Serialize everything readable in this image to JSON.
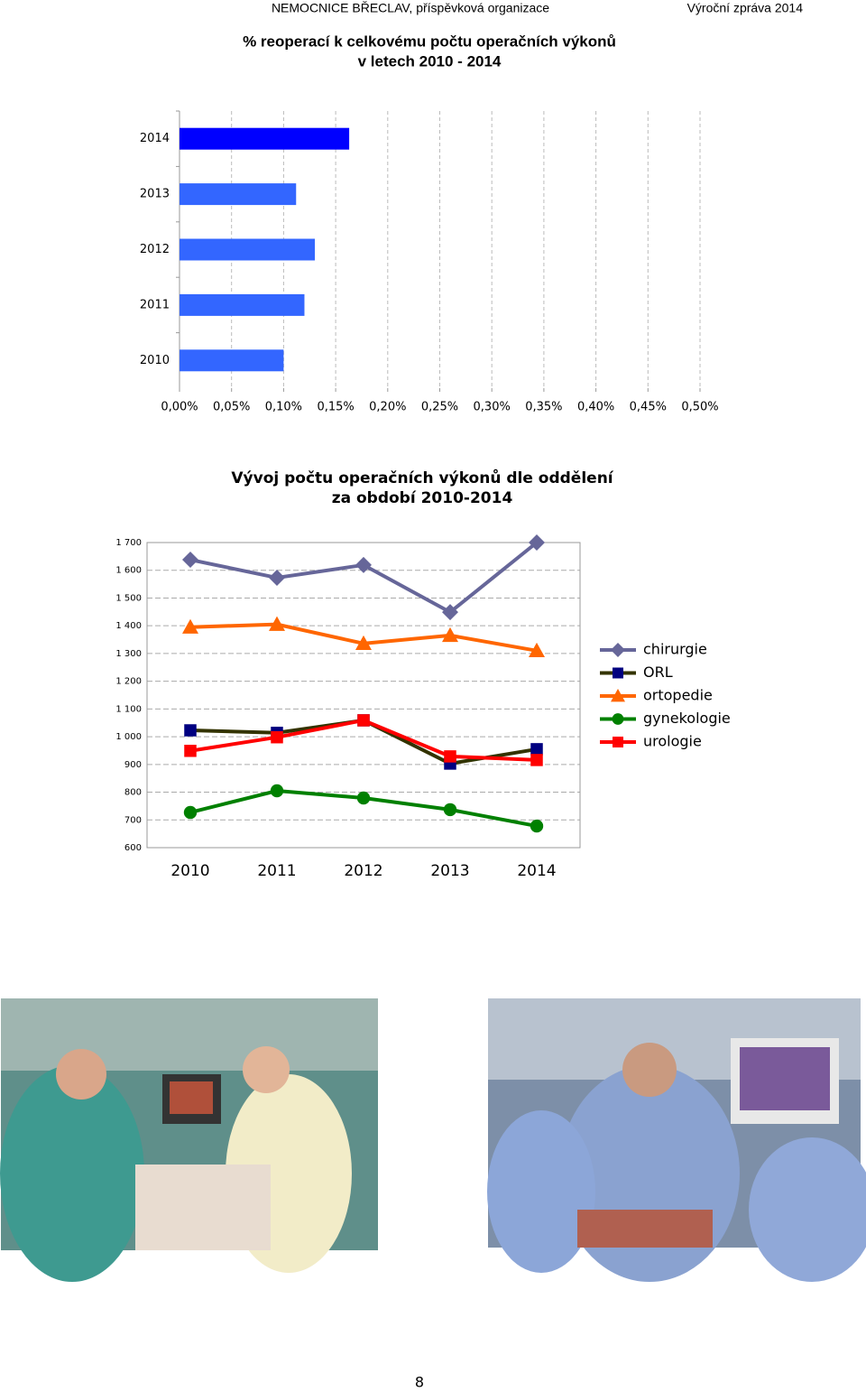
{
  "header": {
    "left": "NEMOCNICE BŘECLAV, příspěvková organizace",
    "right": "Výroční zpráva 2014"
  },
  "chart_data": [
    {
      "type": "bar",
      "orientation": "horizontal",
      "title": [
        "% reoperací k celkovému počtu operačních výkonů",
        "v letech 2010 - 2014"
      ],
      "categories": [
        "2014",
        "2013",
        "2012",
        "2011",
        "2010"
      ],
      "values": [
        0.163,
        0.112,
        0.13,
        0.12,
        0.1
      ],
      "colors": [
        "#0000ff",
        "#3366ff",
        "#3366ff",
        "#3366ff",
        "#3366ff"
      ],
      "xlim": [
        0,
        0.5
      ],
      "xticks": [
        {
          "value": 0,
          "label": "0,00%"
        },
        {
          "value": 0.05,
          "label": "0,05%"
        },
        {
          "value": 0.1,
          "label": "0,10%"
        },
        {
          "value": 0.15,
          "label": "0,15%"
        },
        {
          "value": 0.2,
          "label": "0,20%"
        },
        {
          "value": 0.25,
          "label": "0,25%"
        },
        {
          "value": 0.3,
          "label": "0,30%"
        },
        {
          "value": 0.35,
          "label": "0,35%"
        },
        {
          "value": 0.4,
          "label": "0,40%"
        },
        {
          "value": 0.45,
          "label": "0,45%"
        },
        {
          "value": 0.5,
          "label": "0,50%"
        }
      ],
      "grid": true
    },
    {
      "type": "line",
      "title": [
        "Vývoj počtu operačních výkonů dle oddělení",
        "za období 2010-2014"
      ],
      "categories": [
        "2010",
        "2011",
        "2012",
        "2013",
        "2014"
      ],
      "series": [
        {
          "name": "chirurgie",
          "color": "#666699",
          "marker": "diamond",
          "marker_color": "#666699",
          "values": [
            1638,
            1573,
            1619,
            1449,
            1700
          ]
        },
        {
          "name": "ORL",
          "color": "#333300",
          "marker": "square",
          "marker_color": "#000080",
          "values": [
            1023,
            1014,
            1059,
            903,
            955
          ]
        },
        {
          "name": "ortopedie",
          "color": "#ff6600",
          "marker": "triangle",
          "marker_color": "#ff6600",
          "values": [
            1395,
            1405,
            1336,
            1365,
            1310
          ]
        },
        {
          "name": "gynekologie",
          "color": "#008000",
          "marker": "circle",
          "marker_color": "#008000",
          "values": [
            727,
            805,
            779,
            737,
            678
          ]
        },
        {
          "name": "urologie",
          "color": "#ff0000",
          "marker": "square",
          "marker_color": "#ff0000",
          "values": [
            949,
            998,
            1059,
            929,
            916
          ]
        }
      ],
      "ylim": [
        600,
        1700
      ],
      "yticks": [
        600,
        700,
        800,
        900,
        {
          "value": 1000,
          "label": "1 000"
        },
        {
          "value": 1100,
          "label": "1 100"
        },
        {
          "value": 1200,
          "label": "1 200"
        },
        {
          "value": 1300,
          "label": "1 300"
        },
        {
          "value": 1400,
          "label": "1 400"
        },
        {
          "value": 1500,
          "label": "1 500"
        },
        {
          "value": 1600,
          "label": "1 600"
        },
        {
          "value": 1700,
          "label": "1 700"
        }
      ],
      "grid": true,
      "legend": "right"
    }
  ],
  "page": {
    "number": "8"
  }
}
